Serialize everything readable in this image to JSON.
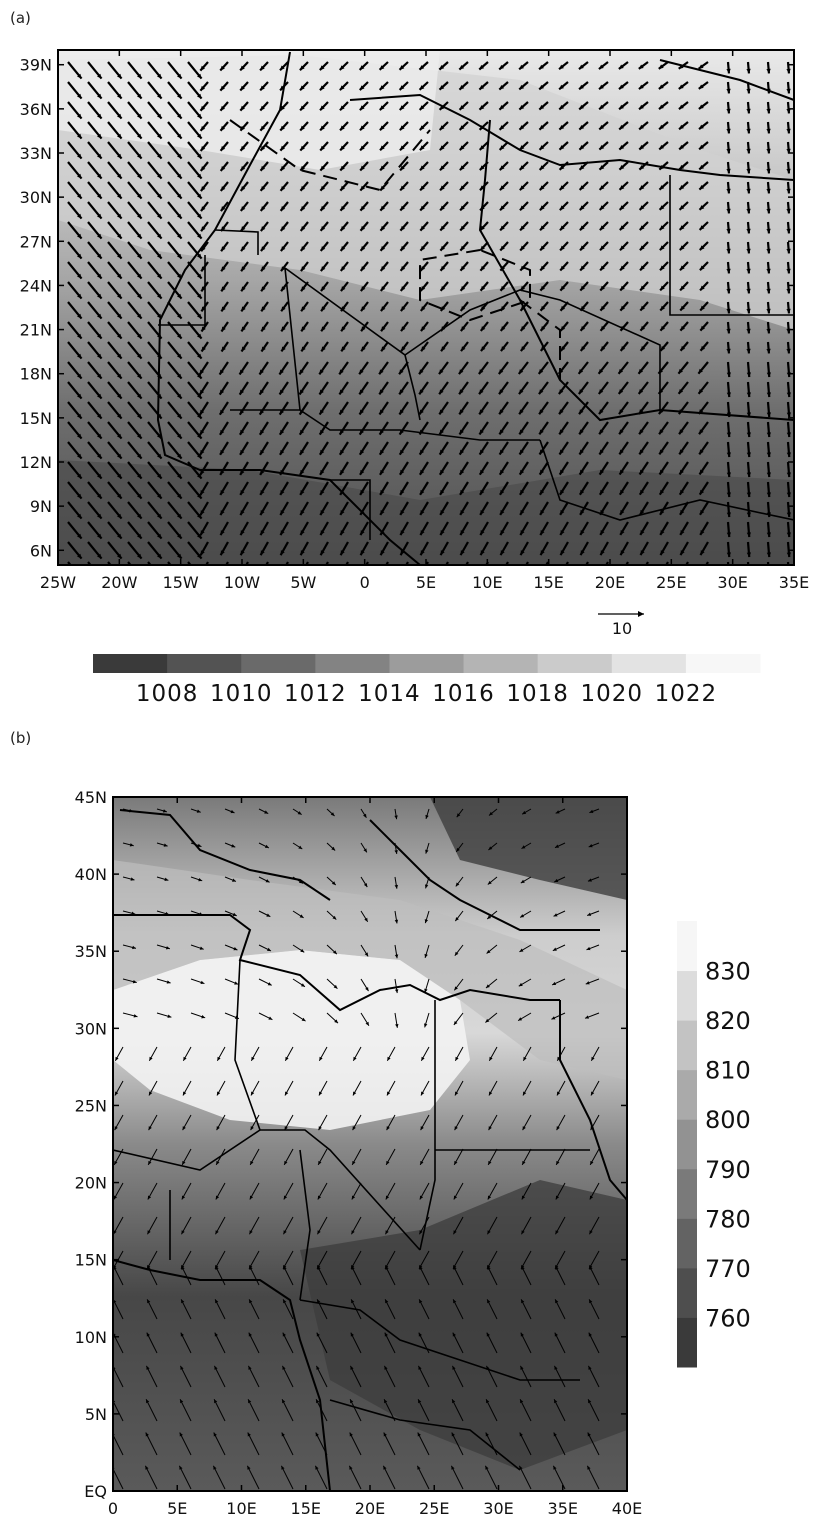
{
  "panels": [
    {
      "label": "(a)",
      "lon_range": [
        -25,
        35
      ],
      "lat_range": [
        5,
        40
      ],
      "xticks": [
        {
          "value": -25,
          "label": "25W"
        },
        {
          "value": -20,
          "label": "20W"
        },
        {
          "value": -15,
          "label": "15W"
        },
        {
          "value": -10,
          "label": "10W"
        },
        {
          "value": -5,
          "label": "5W"
        },
        {
          "value": 0,
          "label": "0"
        },
        {
          "value": 5,
          "label": "5E"
        },
        {
          "value": 10,
          "label": "10E"
        },
        {
          "value": 15,
          "label": "15E"
        },
        {
          "value": 20,
          "label": "20E"
        },
        {
          "value": 25,
          "label": "25E"
        },
        {
          "value": 30,
          "label": "30E"
        },
        {
          "value": 35,
          "label": "35E"
        }
      ],
      "yticks": [
        {
          "value": 6,
          "label": "6N"
        },
        {
          "value": 9,
          "label": "9N"
        },
        {
          "value": 12,
          "label": "12N"
        },
        {
          "value": 15,
          "label": "15N"
        },
        {
          "value": 18,
          "label": "18N"
        },
        {
          "value": 21,
          "label": "21N"
        },
        {
          "value": 24,
          "label": "24N"
        },
        {
          "value": 27,
          "label": "27N"
        },
        {
          "value": 30,
          "label": "30N"
        },
        {
          "value": 33,
          "label": "33N"
        },
        {
          "value": 36,
          "label": "36N"
        },
        {
          "value": 39,
          "label": "39N"
        }
      ],
      "reference_vector_label": "10",
      "colorbar_labels": [
        "1008",
        "1010",
        "1012",
        "1014",
        "1016",
        "1018",
        "1020",
        "1022"
      ],
      "colorbar_colors": [
        "#3a3a3a",
        "#535353",
        "#6a6a6a",
        "#838383",
        "#9c9c9c",
        "#b4b4b4",
        "#cbcbcb",
        "#e3e3e3",
        "#f7f7f7"
      ]
    },
    {
      "label": "(b)",
      "lon_range": [
        0,
        40
      ],
      "lat_range": [
        0,
        45
      ],
      "xticks": [
        {
          "value": 0,
          "label": "0"
        },
        {
          "value": 5,
          "label": "5E"
        },
        {
          "value": 10,
          "label": "10E"
        },
        {
          "value": 15,
          "label": "15E"
        },
        {
          "value": 20,
          "label": "20E"
        },
        {
          "value": 25,
          "label": "25E"
        },
        {
          "value": 30,
          "label": "30E"
        },
        {
          "value": 35,
          "label": "35E"
        },
        {
          "value": 40,
          "label": "40E"
        }
      ],
      "yticks": [
        {
          "value": 0,
          "label": "EQ"
        },
        {
          "value": 5,
          "label": "5N"
        },
        {
          "value": 10,
          "label": "10N"
        },
        {
          "value": 15,
          "label": "15N"
        },
        {
          "value": 20,
          "label": "20N"
        },
        {
          "value": 25,
          "label": "25N"
        },
        {
          "value": 30,
          "label": "30N"
        },
        {
          "value": 35,
          "label": "35N"
        },
        {
          "value": 40,
          "label": "40N"
        },
        {
          "value": 45,
          "label": "45N"
        }
      ],
      "colorbar_labels": [
        "760",
        "770",
        "780",
        "790",
        "800",
        "810",
        "820",
        "830"
      ],
      "colorbar_colors": [
        "#3a3a3a",
        "#4e4e4e",
        "#636363",
        "#7a7a7a",
        "#929292",
        "#aaaaaa",
        "#c3c3c3",
        "#dcdcdc",
        "#f6f6f6"
      ]
    }
  ]
}
